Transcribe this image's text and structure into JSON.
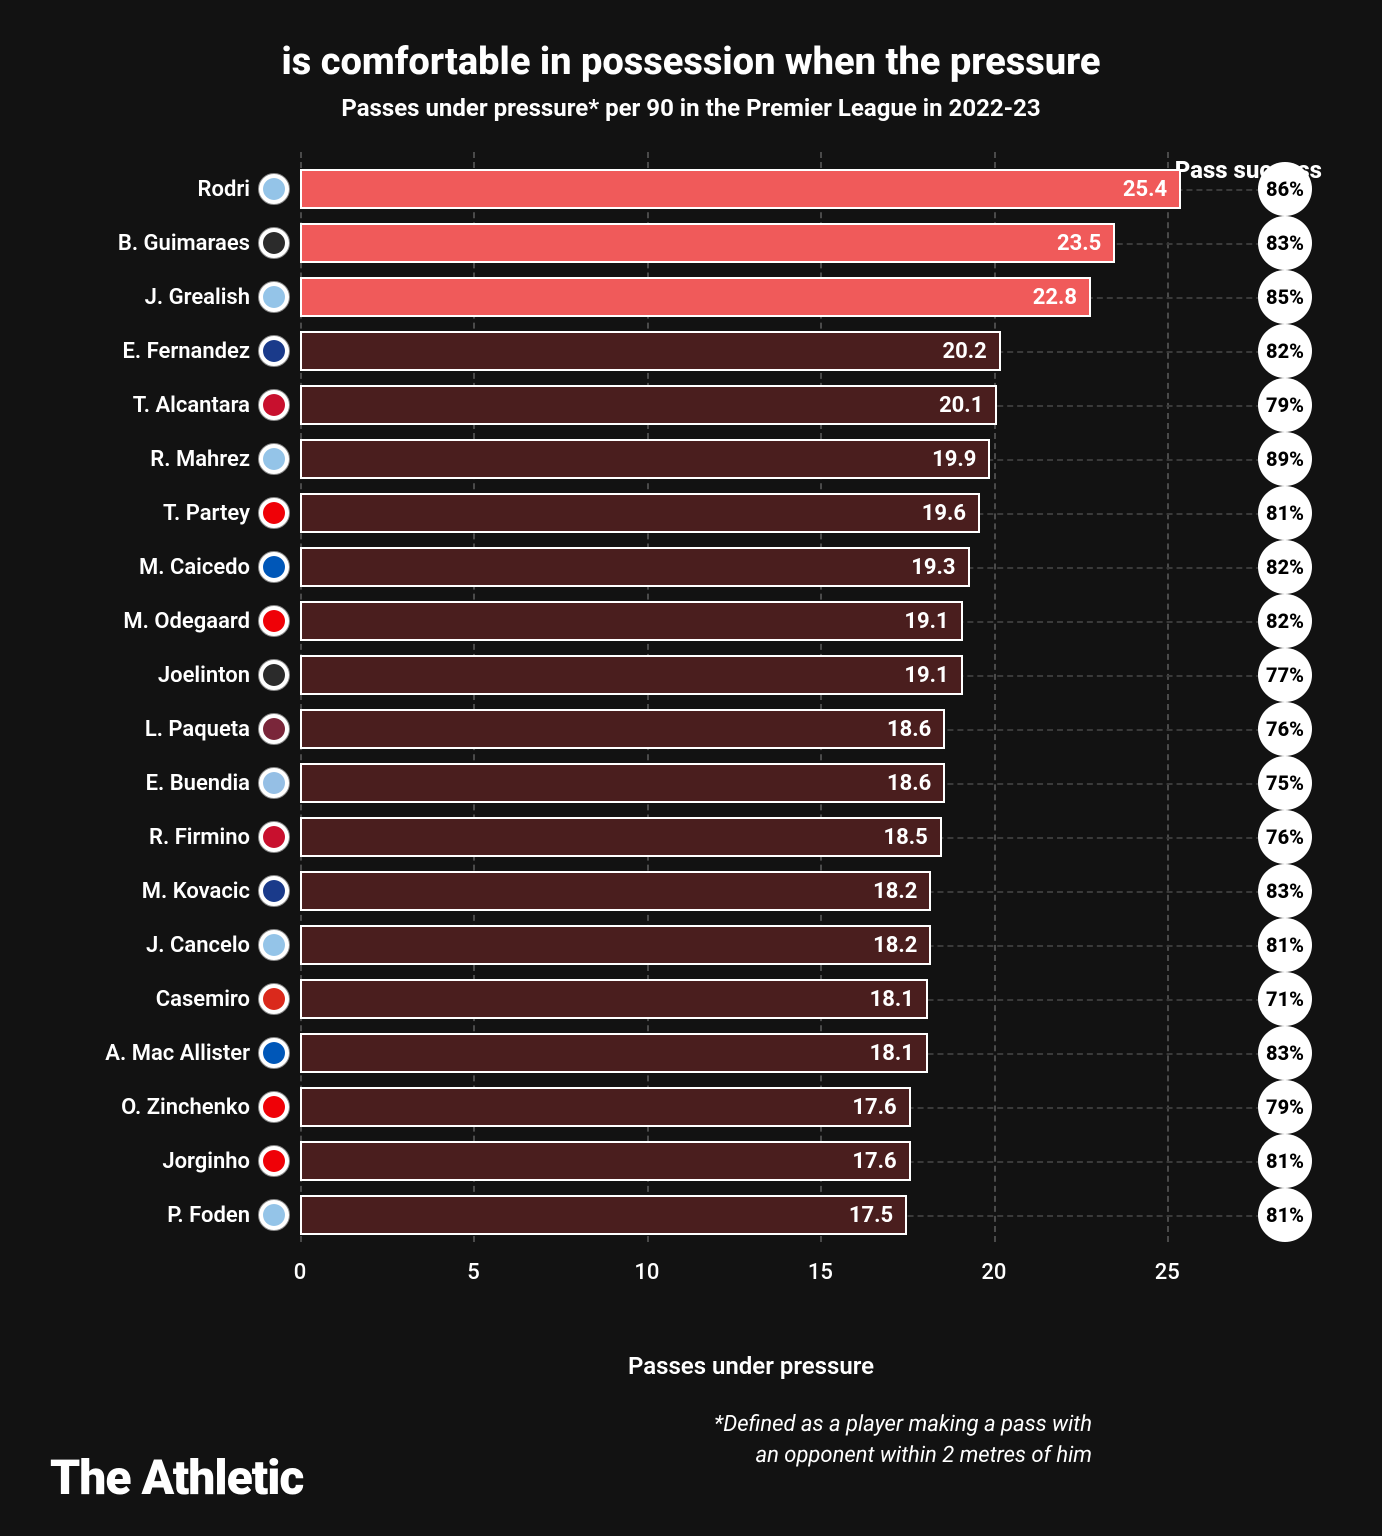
{
  "title": "is comfortable in possession when the pressure",
  "subtitle": "Passes under pressure* per 90 in the Premier League in 2022-23",
  "pass_success_header": "Pass success",
  "x_axis_label": "Passes under pressure",
  "footnote_line1": "*Defined as a player making a pass with",
  "footnote_line2": "an opponent within 2 metres of him",
  "brand": "The Athletic",
  "chart": {
    "type": "bar-horizontal",
    "x_min": 0,
    "x_max": 26,
    "x_ticks": [
      0,
      5,
      10,
      15,
      20,
      25
    ],
    "bar_border_color": "#ffffff",
    "highlight_color": "#f05a5a",
    "normal_color": "#4a1e1e",
    "grid_color": "#4a4a4a",
    "row_dash_color": "#3a3a3a",
    "badge_bg": "#ffffff",
    "badge_text": "#000000",
    "background": "#121212"
  },
  "players": [
    {
      "name": "Rodri",
      "value": 25.4,
      "success": "86%",
      "highlight": true,
      "crest": "#94c4e8"
    },
    {
      "name": "B. Guimaraes",
      "value": 23.5,
      "success": "83%",
      "highlight": true,
      "crest": "#2b2b2b"
    },
    {
      "name": "J. Grealish",
      "value": 22.8,
      "success": "85%",
      "highlight": true,
      "crest": "#94c4e8"
    },
    {
      "name": "E. Fernandez",
      "value": 20.2,
      "success": "82%",
      "highlight": false,
      "crest": "#1a3a8a"
    },
    {
      "name": "T. Alcantara",
      "value": 20.1,
      "success": "79%",
      "highlight": false,
      "crest": "#c8102e"
    },
    {
      "name": "R. Mahrez",
      "value": 19.9,
      "success": "89%",
      "highlight": false,
      "crest": "#94c4e8"
    },
    {
      "name": "T. Partey",
      "value": 19.6,
      "success": "81%",
      "highlight": false,
      "crest": "#ef0107"
    },
    {
      "name": "M. Caicedo",
      "value": 19.3,
      "success": "82%",
      "highlight": false,
      "crest": "#0057b8"
    },
    {
      "name": "M. Odegaard",
      "value": 19.1,
      "success": "82%",
      "highlight": false,
      "crest": "#ef0107"
    },
    {
      "name": "Joelinton",
      "value": 19.1,
      "success": "77%",
      "highlight": false,
      "crest": "#2b2b2b"
    },
    {
      "name": "L. Paqueta",
      "value": 18.6,
      "success": "76%",
      "highlight": false,
      "crest": "#7a263a"
    },
    {
      "name": "E. Buendia",
      "value": 18.6,
      "success": "75%",
      "highlight": false,
      "crest": "#95bfe5"
    },
    {
      "name": "R. Firmino",
      "value": 18.5,
      "success": "76%",
      "highlight": false,
      "crest": "#c8102e"
    },
    {
      "name": "M. Kovacic",
      "value": 18.2,
      "success": "83%",
      "highlight": false,
      "crest": "#1a3a8a"
    },
    {
      "name": "J. Cancelo",
      "value": 18.2,
      "success": "81%",
      "highlight": false,
      "crest": "#94c4e8"
    },
    {
      "name": "Casemiro",
      "value": 18.1,
      "success": "71%",
      "highlight": false,
      "crest": "#da291c"
    },
    {
      "name": "A. Mac Allister",
      "value": 18.1,
      "success": "83%",
      "highlight": false,
      "crest": "#0057b8"
    },
    {
      "name": "O. Zinchenko",
      "value": 17.6,
      "success": "79%",
      "highlight": false,
      "crest": "#ef0107"
    },
    {
      "name": "Jorginho",
      "value": 17.6,
      "success": "81%",
      "highlight": false,
      "crest": "#ef0107"
    },
    {
      "name": "P. Foden",
      "value": 17.5,
      "success": "81%",
      "highlight": false,
      "crest": "#94c4e8"
    }
  ]
}
